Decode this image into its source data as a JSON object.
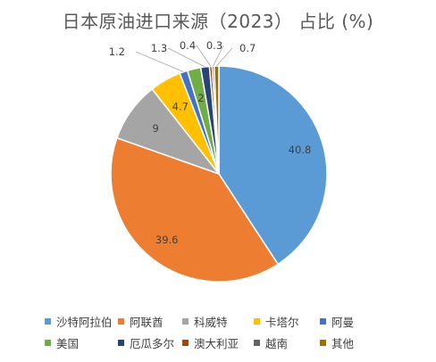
{
  "chart_data": {
    "type": "pie",
    "title": "日本原油进口来源（2023） 占比 (%)",
    "categories": [
      "沙特阿拉伯",
      "阿联酋",
      "科威特",
      "卡塔尔",
      "阿曼",
      "美国",
      "厄瓜多尔",
      "澳大利亚",
      "越南",
      "其他"
    ],
    "values": [
      40.8,
      39.6,
      9,
      4.7,
      1.2,
      2,
      1.3,
      0.4,
      0.3,
      0.7
    ],
    "data_labels": [
      "40.8",
      "39.6",
      "9",
      "4.7",
      "1.2",
      "2",
      "1.3",
      "0.4",
      "0.3",
      "0.7"
    ],
    "colors": [
      "#5B9BD5",
      "#ED7D31",
      "#A5A5A5",
      "#FFC000",
      "#4472C4",
      "#70AD47",
      "#264478",
      "#9E480E",
      "#636363",
      "#997300"
    ],
    "legend_position": "bottom"
  }
}
